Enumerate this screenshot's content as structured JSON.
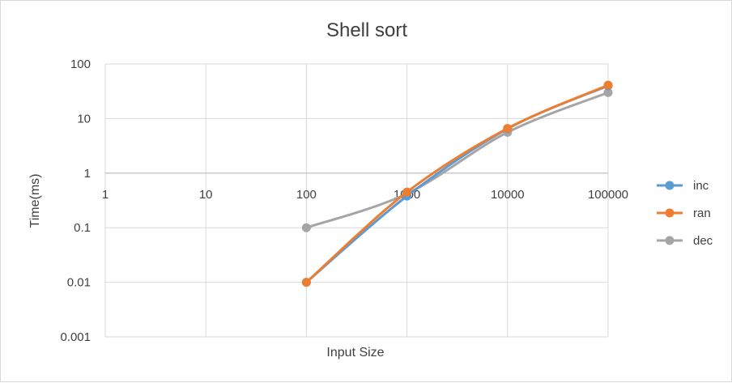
{
  "chart_data": {
    "type": "line",
    "title": "Shell sort",
    "xlabel": "Input Size",
    "ylabel": "Time(ms)",
    "x_scale": "log",
    "y_scale": "log",
    "x_ticks": [
      "1",
      "10",
      "100",
      "1000",
      "10000",
      "100000"
    ],
    "y_ticks": [
      "100",
      "10",
      "1",
      "0.1",
      "0.01",
      "0.001"
    ],
    "xlim": [
      1,
      100000
    ],
    "ylim": [
      0.001,
      100
    ],
    "grid": true,
    "legend_position": "right",
    "series": [
      {
        "name": "inc",
        "color": "#5B9BD5",
        "x": [
          100,
          1000,
          10000,
          100000
        ],
        "y": [
          0.01,
          0.38,
          6.5,
          40
        ]
      },
      {
        "name": "ran",
        "color": "#ED7D31",
        "x": [
          100,
          1000,
          10000,
          100000
        ],
        "y": [
          0.01,
          0.45,
          6.6,
          41
        ]
      },
      {
        "name": "dec",
        "color": "#A5A5A5",
        "x": [
          100,
          1000,
          10000,
          100000
        ],
        "y": [
          0.1,
          0.42,
          5.6,
          30
        ]
      }
    ]
  }
}
